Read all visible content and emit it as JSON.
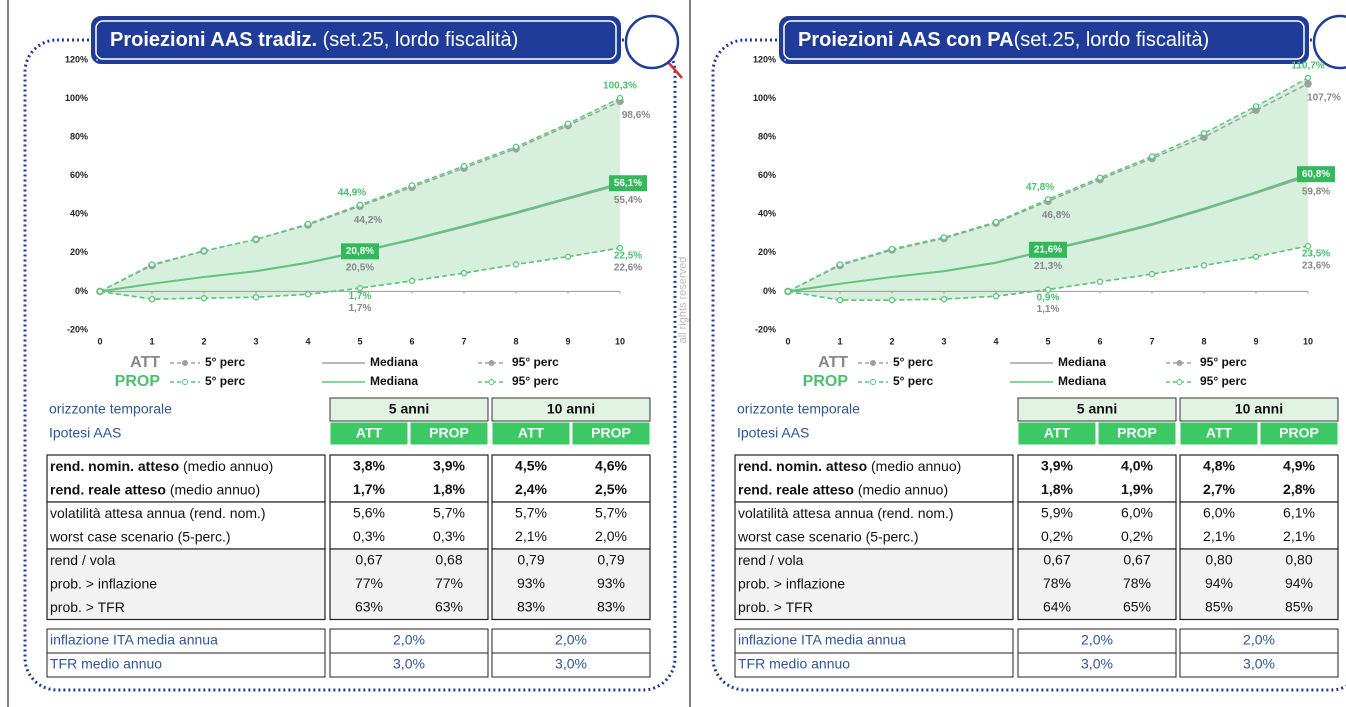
{
  "panels": [
    {
      "title_bold": "Proiezioni AAS tradiz.",
      "title_rest": " (set.25, lordo fiscalità)",
      "watermark": "all rights reserved",
      "table": {
        "label1": "orizzonte temporale",
        "label2": "Ipotesi AAS",
        "periods": [
          "5 anni",
          "10 anni"
        ],
        "cols": [
          "ATT",
          "PROP",
          "ATT",
          "PROP"
        ],
        "rows": [
          {
            "label": "rend. nomin. atteso",
            "note": " (medio annuo)",
            "cells": [
              "3,8%",
              "3,9%",
              "4,5%",
              "4,6%"
            ]
          },
          {
            "label": "rend. reale atteso",
            "note": " (medio annuo)",
            "cells": [
              "1,7%",
              "1,8%",
              "2,4%",
              "2,5%"
            ]
          },
          {
            "label": "volatilità attesa annua (rend. nom.)",
            "cells": [
              "5,6%",
              "5,7%",
              "5,7%",
              "5,7%"
            ]
          },
          {
            "label": "worst case scenario (5-perc.)",
            "cells": [
              "0,3%",
              "0,3%",
              "2,1%",
              "2,0%"
            ]
          },
          {
            "label": "rend / vola",
            "cells": [
              "0,67",
              "0,68",
              "0,79",
              "0,79"
            ]
          },
          {
            "label": "prob. > inflazione",
            "cells": [
              "77%",
              "77%",
              "93%",
              "93%"
            ]
          },
          {
            "label": "prob. > TFR",
            "cells": [
              "63%",
              "63%",
              "83%",
              "83%"
            ]
          }
        ],
        "footer": [
          {
            "label": "inflazione ITA media annua",
            "cells": [
              "2,0%",
              "2,0%"
            ]
          },
          {
            "label": "TFR medio annuo",
            "cells": [
              "3,0%",
              "3,0%"
            ]
          }
        ]
      }
    },
    {
      "title_bold": "Proiezioni AAS con PA",
      "title_rest": "(set.25, lordo fiscalità)",
      "watermark": "all rights reserved",
      "table": {
        "label1": "orizzonte temporale",
        "label2": "Ipotesi AAS",
        "periods": [
          "5 anni",
          "10 anni"
        ],
        "cols": [
          "ATT",
          "PROP",
          "ATT",
          "PROP"
        ],
        "rows": [
          {
            "label": "rend. nomin. atteso",
            "note": " (medio annuo)",
            "cells": [
              "3,9%",
              "4,0%",
              "4,8%",
              "4,9%"
            ]
          },
          {
            "label": "rend. reale atteso",
            "note": " (medio annuo)",
            "cells": [
              "1,8%",
              "1,9%",
              "2,7%",
              "2,8%"
            ]
          },
          {
            "label": "volatilità attesa annua (rend. nom.)",
            "cells": [
              "5,9%",
              "6,0%",
              "6,0%",
              "6,1%"
            ]
          },
          {
            "label": "worst case scenario (5-perc.)",
            "cells": [
              "0,2%",
              "0,2%",
              "2,1%",
              "2,1%"
            ]
          },
          {
            "label": "rend / vola",
            "cells": [
              "0,67",
              "0,67",
              "0,80",
              "0,80"
            ]
          },
          {
            "label": "prob. > inflazione",
            "cells": [
              "78%",
              "78%",
              "94%",
              "94%"
            ]
          },
          {
            "label": "prob. > TFR",
            "cells": [
              "64%",
              "65%",
              "85%",
              "85%"
            ]
          }
        ],
        "footer": [
          {
            "label": "inflazione ITA media annua",
            "cells": [
              "2,0%",
              "2,0%"
            ]
          },
          {
            "label": "TFR medio annuo",
            "cells": [
              "3,0%",
              "3,0%"
            ]
          }
        ]
      }
    }
  ],
  "chart_data": [
    {
      "type": "line",
      "x": [
        0,
        1,
        2,
        3,
        4,
        5,
        6,
        7,
        8,
        9,
        10
      ],
      "xlim": [
        0,
        10
      ],
      "xticks": [
        0,
        1,
        2,
        3,
        4,
        5,
        6,
        7,
        8,
        9,
        10
      ],
      "ylim": [
        -20,
        120
      ],
      "yticks": [
        {
          "value": -20,
          "label": "-20%"
        },
        {
          "value": 0,
          "label": "0%"
        },
        {
          "value": 20,
          "label": "20%"
        },
        {
          "value": 40,
          "label": "40%"
        },
        {
          "value": 60,
          "label": "60%"
        },
        {
          "value": 80,
          "label": "80%"
        },
        {
          "value": 100,
          "label": "100%"
        },
        {
          "value": 120,
          "label": "120%"
        }
      ],
      "legend_groups": [
        "ATT",
        "PROP"
      ],
      "series": [
        {
          "name": "5° perc",
          "color": "#a0a0a0",
          "values": [
            0,
            -4,
            -3.5,
            -3,
            -1.5,
            1.7,
            5.5,
            9.5,
            14,
            18,
            22.6
          ],
          "value_labels": [
            null,
            null,
            null,
            null,
            null,
            "1,7%",
            null,
            null,
            null,
            null,
            "22,6%"
          ]
        },
        {
          "name": "Mediana",
          "color": "#a0a0a0",
          "values": [
            0,
            4,
            7.5,
            10.5,
            14.8,
            20.5,
            26.7,
            33.5,
            40.5,
            48,
            55.4
          ],
          "value_labels": [
            null,
            null,
            null,
            null,
            null,
            "20,5%",
            null,
            null,
            null,
            null,
            "55,4%"
          ]
        },
        {
          "name": "95° perc",
          "color": "#a0a0a0",
          "values": [
            0,
            13.5,
            21,
            27,
            34.5,
            44.2,
            54,
            64,
            74,
            86,
            98.6
          ],
          "value_labels": [
            null,
            null,
            null,
            null,
            null,
            "44,2%",
            null,
            null,
            null,
            null,
            "98,6%"
          ]
        },
        {
          "name": "5° perc",
          "color": "#5ac87a",
          "values": [
            0,
            -4,
            -3.5,
            -3,
            -1.5,
            1.7,
            5.5,
            9.5,
            14,
            18,
            22.5
          ],
          "value_labels": [
            null,
            null,
            null,
            null,
            null,
            "1,7%",
            null,
            null,
            null,
            null,
            "22,5%"
          ]
        },
        {
          "name": "Mediana",
          "color": "#5ac87a",
          "values": [
            0,
            4,
            7.5,
            10.5,
            15,
            20.8,
            27,
            34,
            41,
            48.5,
            56.1
          ],
          "value_labels": [
            null,
            null,
            null,
            null,
            null,
            "20,8%",
            null,
            null,
            null,
            null,
            "56,1%"
          ]
        },
        {
          "name": "95° perc",
          "color": "#5ac87a",
          "values": [
            0,
            14,
            21,
            27,
            35,
            44.9,
            55,
            65,
            75,
            87,
            100.3
          ],
          "value_labels": [
            null,
            null,
            null,
            null,
            null,
            "44,9%",
            null,
            null,
            null,
            null,
            "100,3%"
          ]
        }
      ]
    },
    {
      "type": "line",
      "x": [
        0,
        1,
        2,
        3,
        4,
        5,
        6,
        7,
        8,
        9,
        10
      ],
      "xlim": [
        0,
        10
      ],
      "xticks": [
        0,
        1,
        2,
        3,
        4,
        5,
        6,
        7,
        8,
        9,
        10
      ],
      "ylim": [
        -20,
        120
      ],
      "yticks": [
        {
          "value": -20,
          "label": "-20%"
        },
        {
          "value": 0,
          "label": "0%"
        },
        {
          "value": 20,
          "label": "20%"
        },
        {
          "value": 40,
          "label": "40%"
        },
        {
          "value": 60,
          "label": "60%"
        },
        {
          "value": 80,
          "label": "80%"
        },
        {
          "value": 100,
          "label": "100%"
        },
        {
          "value": 120,
          "label": "120%"
        }
      ],
      "legend_groups": [
        "ATT",
        "PROP"
      ],
      "series": [
        {
          "name": "5° perc",
          "color": "#a0a0a0",
          "values": [
            0,
            -4.5,
            -4.5,
            -4,
            -2.5,
            1.1,
            5,
            9,
            13.5,
            18,
            23.6
          ],
          "value_labels": [
            null,
            null,
            null,
            null,
            null,
            "1,1%",
            null,
            null,
            null,
            null,
            "23,6%"
          ]
        },
        {
          "name": "Mediana",
          "color": "#a0a0a0",
          "values": [
            0,
            4,
            7.5,
            10.5,
            14.8,
            21.3,
            27.5,
            34.5,
            42.5,
            51,
            59.8
          ],
          "value_labels": [
            null,
            null,
            null,
            null,
            null,
            "21,3%",
            null,
            null,
            null,
            null,
            "59,8%"
          ]
        },
        {
          "name": "95° perc",
          "color": "#a0a0a0",
          "values": [
            0,
            13.5,
            21.5,
            27.5,
            35.5,
            46.8,
            58,
            69,
            80,
            94,
            107.7
          ],
          "value_labels": [
            null,
            null,
            null,
            null,
            null,
            "46,8%",
            null,
            null,
            null,
            null,
            "107,7%"
          ]
        },
        {
          "name": "5° perc",
          "color": "#5ac87a",
          "values": [
            0,
            -4.5,
            -4.5,
            -4,
            -2.5,
            0.9,
            5,
            9,
            13.5,
            18,
            23.5
          ],
          "value_labels": [
            null,
            null,
            null,
            null,
            null,
            "0,9%",
            null,
            null,
            null,
            null,
            "23,5%"
          ]
        },
        {
          "name": "Mediana",
          "color": "#5ac87a",
          "values": [
            0,
            4,
            7.5,
            10.5,
            15,
            21.6,
            28,
            35,
            43,
            51.5,
            60.8
          ],
          "value_labels": [
            null,
            null,
            null,
            null,
            null,
            "21,6%",
            null,
            null,
            null,
            null,
            "60,8%"
          ]
        },
        {
          "name": "95° perc",
          "color": "#5ac87a",
          "values": [
            0,
            14,
            22,
            28,
            36,
            47.8,
            59,
            70,
            82,
            96,
            110.7
          ],
          "value_labels": [
            null,
            null,
            null,
            null,
            null,
            "47,8%",
            null,
            null,
            null,
            null,
            "110,7%"
          ]
        }
      ]
    }
  ]
}
